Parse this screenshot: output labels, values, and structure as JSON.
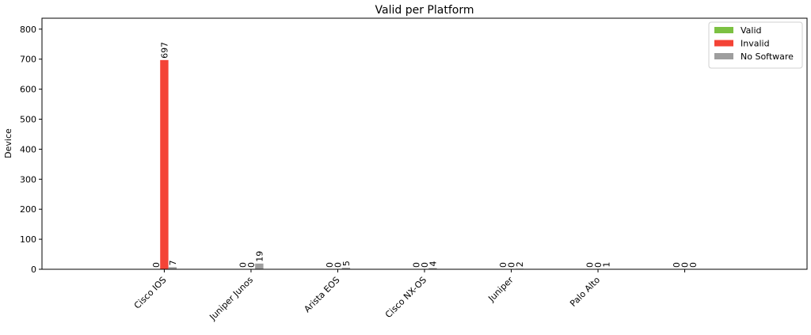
{
  "chart_data": {
    "type": "bar",
    "title": "Valid per Platform",
    "xlabel": "",
    "ylabel": "Device",
    "categories": [
      "Cisco IOS",
      "Juniper Junos",
      "Arista EOS",
      "Cisco NX-OS",
      "Juniper",
      "Palo Alto",
      ""
    ],
    "series": [
      {
        "name": "Valid",
        "color": "#7cc142",
        "values": [
          0,
          0,
          0,
          0,
          0,
          0,
          0
        ]
      },
      {
        "name": "Invalid",
        "color": "#f44336",
        "values": [
          697,
          0,
          0,
          0,
          0,
          0,
          0
        ]
      },
      {
        "name": "No Software",
        "color": "#9e9e9e",
        "values": [
          7,
          19,
          5,
          4,
          2,
          1,
          0
        ]
      }
    ],
    "ylim": [
      0,
      836.4
    ],
    "yticks": [
      0,
      100,
      200,
      300,
      400,
      500,
      600,
      700,
      800
    ],
    "grid": false,
    "legend_position": "top-right"
  }
}
